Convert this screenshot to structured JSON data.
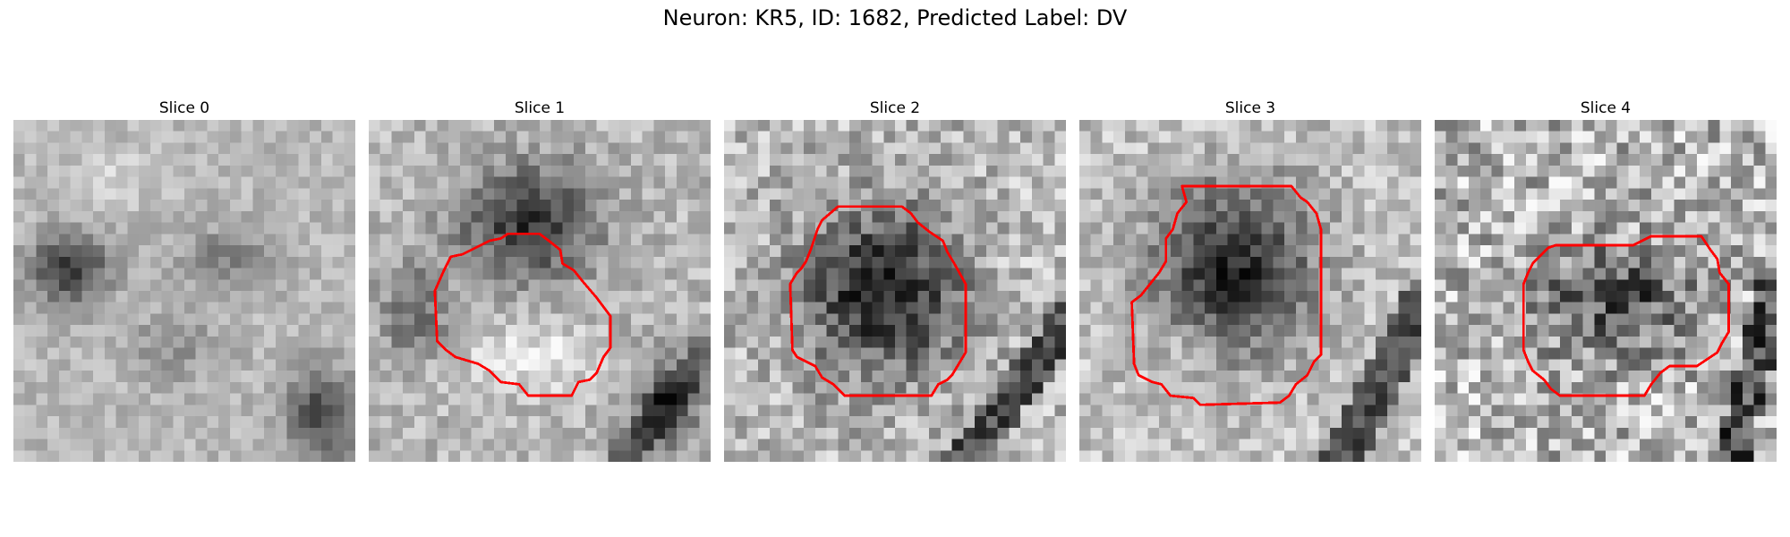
{
  "figure": {
    "title": "Neuron: KR5, ID: 1682, Predicted Label: DV"
  },
  "colors": {
    "contour": "#ff0000",
    "background": "#ffffff",
    "colormap": "grayscale"
  },
  "panels": [
    {
      "title": "Slice 0",
      "has_contour": false
    },
    {
      "title": "Slice 1",
      "has_contour": true
    },
    {
      "title": "Slice 2",
      "has_contour": true
    },
    {
      "title": "Slice 3",
      "has_contour": true
    },
    {
      "title": "Slice 4",
      "has_contour": true
    }
  ]
}
